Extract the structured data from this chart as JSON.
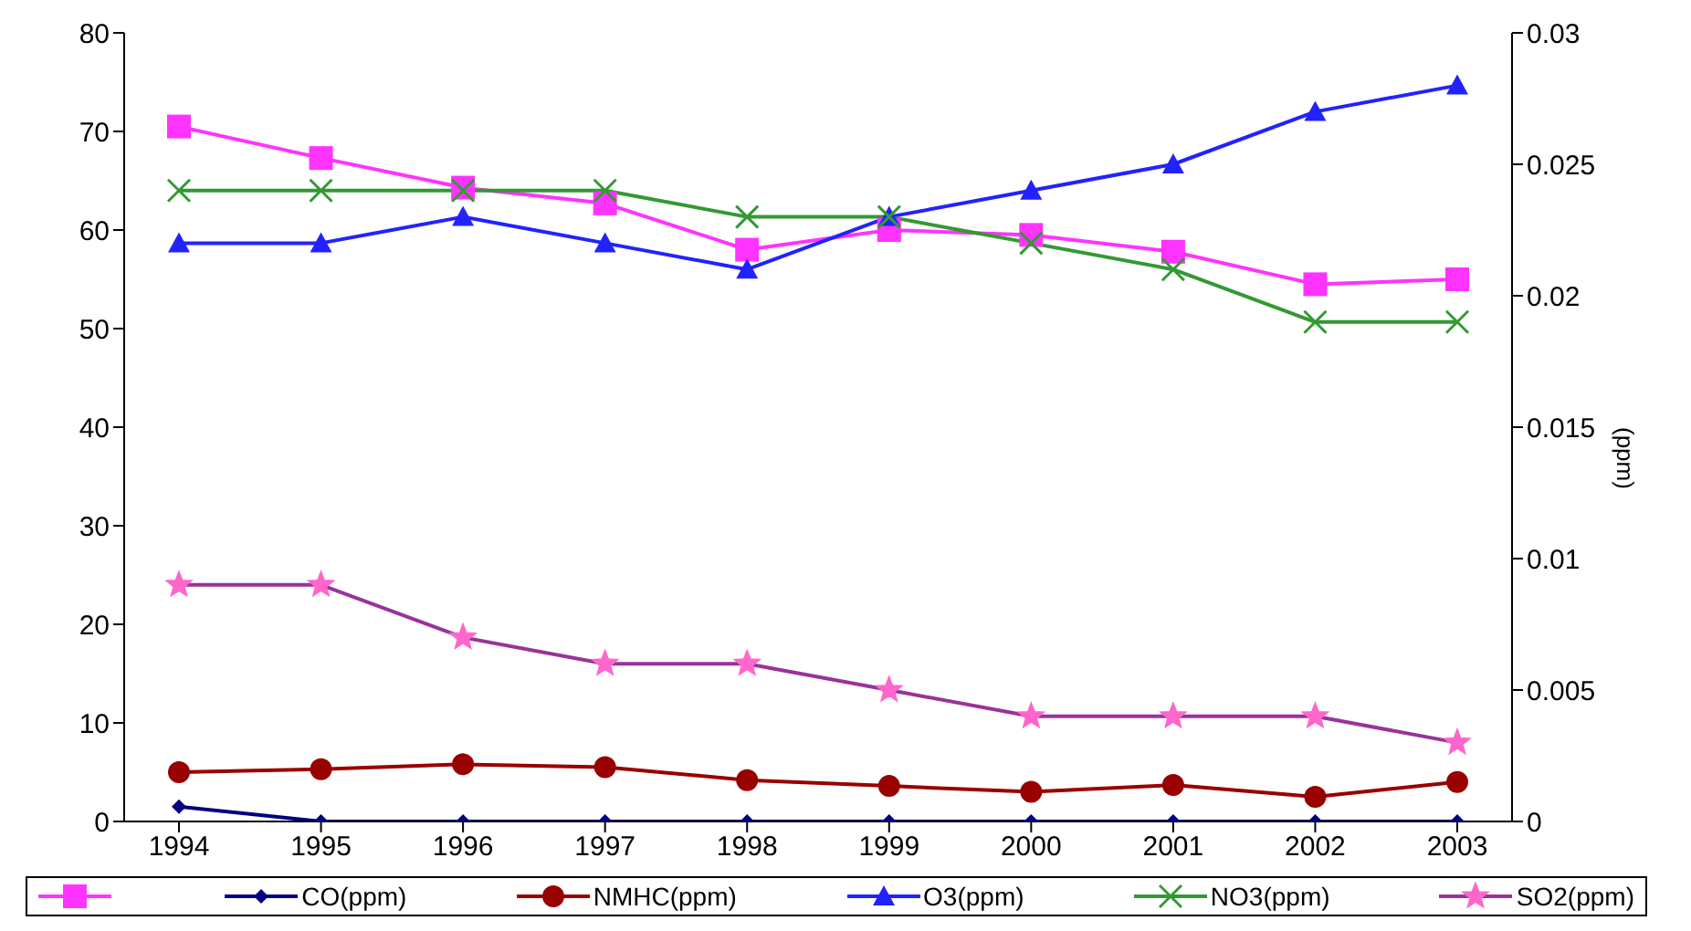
{
  "chart_data": {
    "type": "line",
    "y2label": "(ppm)",
    "categories": [
      "1994",
      "1995",
      "1996",
      "1997",
      "1998",
      "1999",
      "2000",
      "2001",
      "2002",
      "2003"
    ],
    "series": [
      {
        "color": "#ff33ff",
        "marker": "square",
        "values": [
          70.5,
          67.3,
          64.3,
          62.7,
          58,
          60,
          59.5,
          57.8,
          54.5,
          55
        ]
      },
      {
        "name": "CO(ppm)",
        "color": "#000080",
        "marker": "diamond",
        "values": [
          1.5,
          0,
          0,
          0,
          0,
          0,
          0,
          0,
          0,
          0
        ]
      },
      {
        "name": "NMHC(ppm)",
        "color": "#990000",
        "marker": "circle",
        "values": [
          5,
          5.3,
          5.8,
          5.5,
          4.2,
          3.6,
          3,
          3.7,
          2.5,
          4
        ]
      },
      {
        "name": "O3(ppm)",
        "color": "#2222ff",
        "marker": "triangle",
        "axis": "y2",
        "values": [
          0.022,
          0.022,
          0.023,
          0.022,
          0.021,
          0.023,
          0.024,
          0.025,
          0.027,
          0.028
        ]
      },
      {
        "name": "NO3(ppm)",
        "color": "#339933",
        "marker": "cross",
        "axis": "y2",
        "values": [
          0.024,
          0.024,
          0.024,
          0.024,
          0.023,
          0.023,
          0.022,
          0.021,
          0.019,
          0.019
        ]
      },
      {
        "name": "SO2(ppm)",
        "color": "#993399",
        "marker": "star",
        "axis": "y2",
        "values": [
          0.009,
          0.009,
          0.007,
          0.006,
          0.006,
          0.005,
          0.004,
          0.004,
          0.004,
          0.003
        ]
      }
    ],
    "ylim": [
      0,
      80
    ],
    "yticks": [
      0,
      10,
      20,
      30,
      40,
      50,
      60,
      70,
      80
    ],
    "y2lim": [
      0,
      0.03
    ],
    "y2ticks": [
      0,
      0.005,
      0.01,
      0.015,
      0.02,
      0.025,
      0.03
    ],
    "grid": false,
    "legend": "bottom"
  }
}
